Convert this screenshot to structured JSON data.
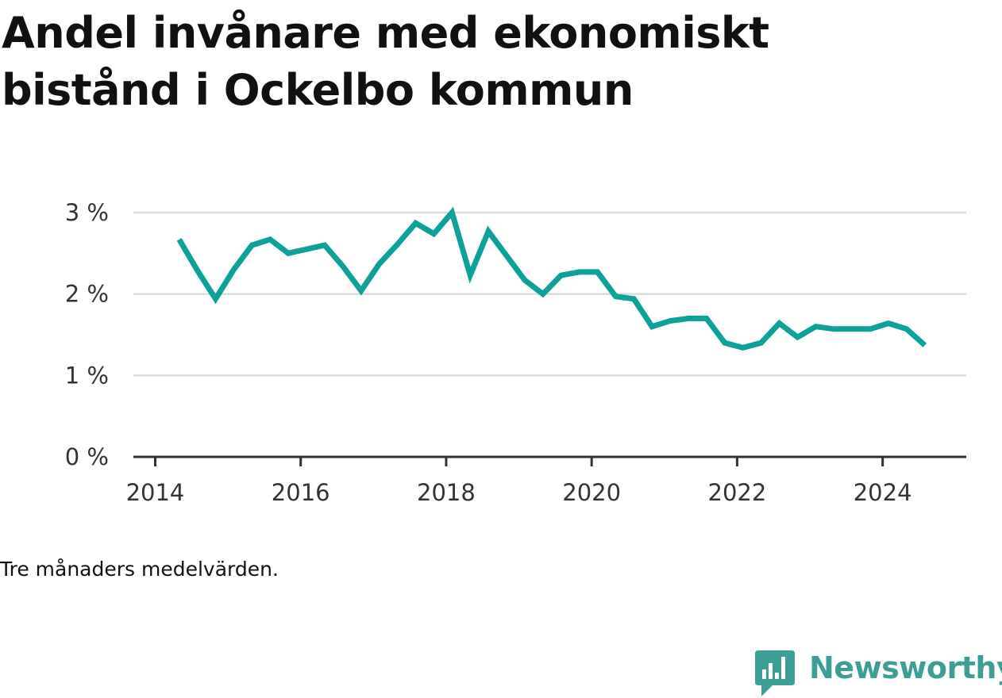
{
  "title": "Andel invånare med ekonomiskt bistånd i Ockelbo kommun",
  "note": "Tre månaders medelvärden.",
  "brand": "Newsworthy",
  "colors": {
    "line": "#0ea198",
    "grid": "#dddddd",
    "axis": "#333333",
    "brand": "#3e9e96"
  },
  "chart_data": {
    "type": "line",
    "title": "Andel invånare med ekonomiskt bistånd i Ockelbo kommun",
    "xlabel": "",
    "ylabel": "",
    "xlim": [
      2013.7,
      2025.15
    ],
    "ylim": [
      0,
      3
    ],
    "x_ticks": [
      2014,
      2016,
      2018,
      2020,
      2022,
      2024
    ],
    "y_ticks": [
      0,
      1,
      2,
      3
    ],
    "y_tick_labels": [
      "0 %",
      "1 %",
      "2 %",
      "3 %"
    ],
    "grid": true,
    "series": [
      {
        "x": [
          2014.33,
          2014.58,
          2014.83,
          2015.08,
          2015.33,
          2015.58,
          2015.83,
          2016.08,
          2016.33,
          2016.58,
          2016.83,
          2017.08,
          2017.33,
          2017.58,
          2017.83,
          2018.08,
          2018.33,
          2018.58,
          2018.83,
          2019.08,
          2019.33,
          2019.58,
          2019.83,
          2020.08,
          2020.33,
          2020.58,
          2020.83,
          2021.08,
          2021.33,
          2021.58,
          2021.83,
          2022.08,
          2022.33,
          2022.58,
          2022.83,
          2023.08,
          2023.33,
          2023.58,
          2023.83,
          2024.08,
          2024.33,
          2024.58
        ],
        "values": [
          2.67,
          2.29,
          1.94,
          2.3,
          2.6,
          2.67,
          2.5,
          2.55,
          2.6,
          2.34,
          2.04,
          2.37,
          2.61,
          2.87,
          2.74,
          3.0,
          2.23,
          2.77,
          2.47,
          2.17,
          2.0,
          2.23,
          2.27,
          2.27,
          1.97,
          1.94,
          1.6,
          1.67,
          1.7,
          1.7,
          1.4,
          1.34,
          1.4,
          1.64,
          1.47,
          1.6,
          1.57,
          1.57,
          1.57,
          1.64,
          1.57,
          1.37
        ]
      }
    ]
  }
}
